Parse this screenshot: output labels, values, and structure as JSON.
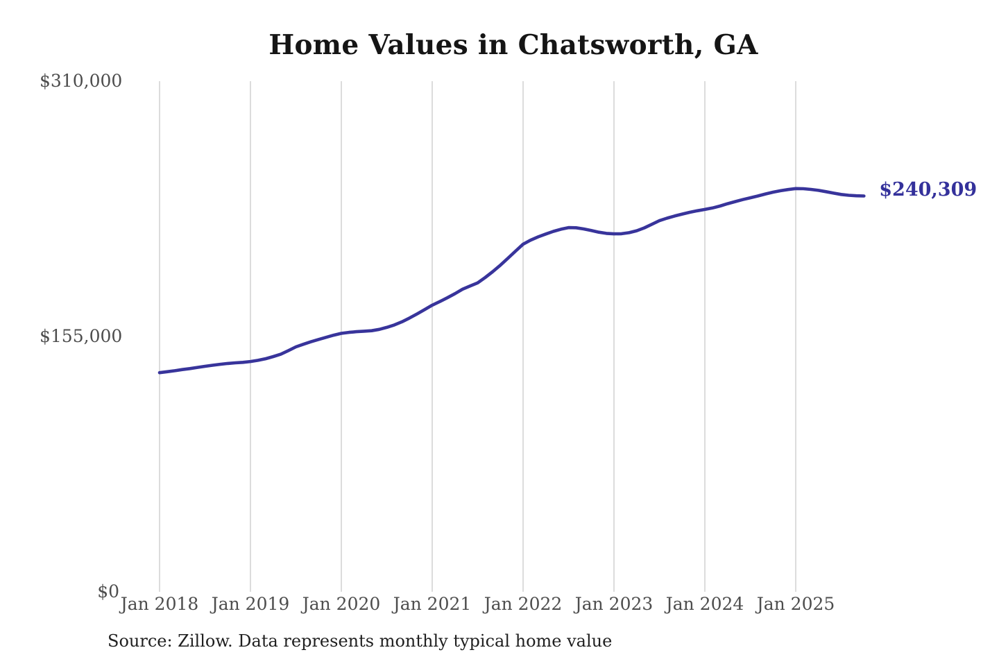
{
  "title": "Home Values in Chatsworth, GA",
  "source_note": "Source: Zillow. Data represents monthly typical home value",
  "colors": {
    "line": "#38349b",
    "end_label": "#34319b",
    "grid": "#c9c9c9",
    "title_text": "#151515",
    "axis_text": "#4d4d4d",
    "source_text": "#1f1f1f",
    "background": "#ffffff"
  },
  "chart_data": {
    "type": "line",
    "title": "Home Values in Chatsworth, GA",
    "xlabel": "",
    "ylabel": "",
    "ylim": [
      0,
      310000
    ],
    "grid": "vertical",
    "legend": "none",
    "y_ticks": [
      {
        "label": "$0",
        "value": 0
      },
      {
        "label": "$155,000",
        "value": 155000
      },
      {
        "label": "$310,000",
        "value": 310000
      }
    ],
    "x_ticks": [
      "Jan 2018",
      "Jan 2019",
      "Jan 2020",
      "Jan 2021",
      "Jan 2022",
      "Jan 2023",
      "Jan 2024",
      "Jan 2025"
    ],
    "frequency": "monthly",
    "start_month": "Jan 2018",
    "end_month": "Oct 2025",
    "last_value": 240309,
    "last_value_label": "$240,309",
    "series": [
      {
        "name": "Typical home value (USD)",
        "values": [
          133000,
          133600,
          134200,
          134900,
          135500,
          136200,
          136900,
          137500,
          138100,
          138600,
          139000,
          139300,
          139800,
          140500,
          141500,
          142800,
          144200,
          146400,
          148700,
          150300,
          151800,
          153200,
          154500,
          155800,
          156900,
          157500,
          157900,
          158200,
          158500,
          159300,
          160500,
          162000,
          163900,
          166200,
          168700,
          171300,
          174000,
          176200,
          178500,
          181000,
          183700,
          185600,
          187500,
          190800,
          194400,
          198300,
          202500,
          206800,
          211000,
          213500,
          215500,
          217200,
          218800,
          220100,
          221100,
          221000,
          220300,
          219300,
          218300,
          217600,
          217300,
          217400,
          218000,
          219200,
          220900,
          223100,
          225300,
          226800,
          228100,
          229300,
          230400,
          231300,
          232100,
          233000,
          234200,
          235600,
          236900,
          238100,
          239200,
          240300,
          241500,
          242600,
          243500,
          244200,
          244800,
          244700,
          244300,
          243700,
          242900,
          242000,
          241200,
          240700,
          240400,
          240309
        ]
      }
    ]
  }
}
